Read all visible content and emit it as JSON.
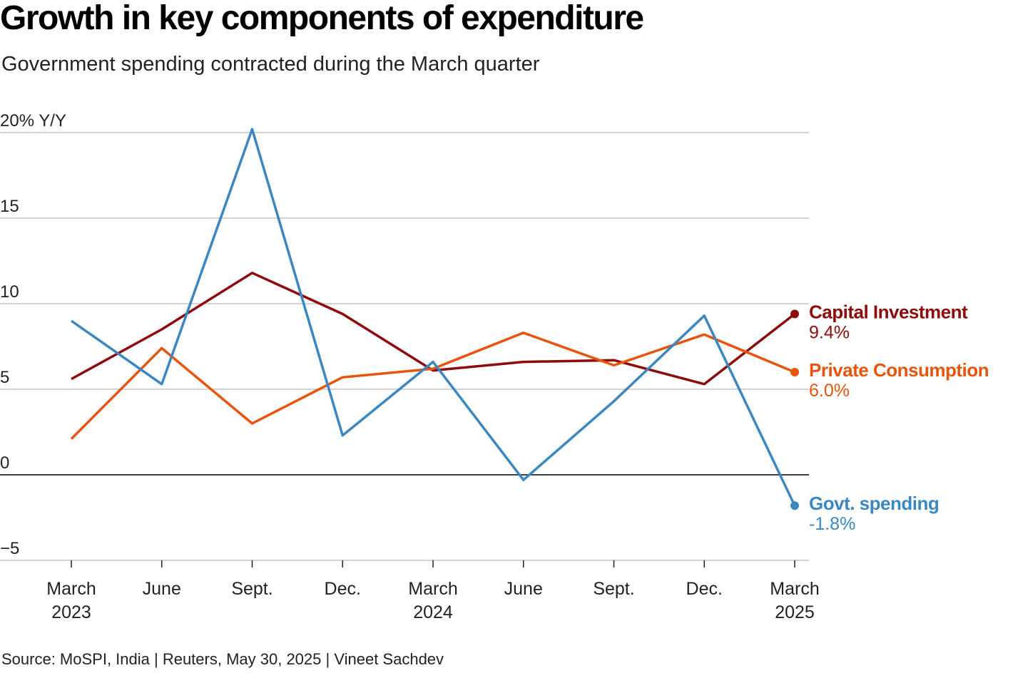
{
  "title": "Growth in key components of expenditure",
  "subtitle": "Government spending contracted during the March quarter",
  "source": "Source: MoSPI, India | Reuters, May 30, 2025 | Vineet Sachdev",
  "chart_data": {
    "type": "line",
    "title": "Growth in key components of expenditure",
    "ylabel": "% Y/Y",
    "ylim": [
      -5,
      20
    ],
    "yticks": [
      -5,
      0,
      5,
      10,
      15,
      20
    ],
    "ytick_labels": [
      "−5",
      "0",
      "5",
      "10",
      "15",
      "20% Y/Y"
    ],
    "grid": true,
    "categories": [
      [
        "March",
        "2023"
      ],
      [
        "June",
        ""
      ],
      [
        "Sept.",
        ""
      ],
      [
        "Dec.",
        ""
      ],
      [
        "March",
        "2024"
      ],
      [
        "June",
        ""
      ],
      [
        "Sept.",
        ""
      ],
      [
        "Dec.",
        ""
      ],
      [
        "March",
        "2025"
      ]
    ],
    "series": [
      {
        "name": "Capital Investment",
        "end_label": "9.4%",
        "color": "#8f0a0a",
        "values": [
          5.6,
          8.5,
          11.8,
          9.4,
          6.1,
          6.6,
          6.7,
          5.3,
          9.4
        ]
      },
      {
        "name": "Private Consumption",
        "end_label": "6.0%",
        "color": "#e6550d",
        "values": [
          2.1,
          7.4,
          3.0,
          5.7,
          6.2,
          8.3,
          6.4,
          8.2,
          6.0
        ]
      },
      {
        "name": "Govt. spending",
        "end_label": "-1.8%",
        "color": "#3a87c2",
        "values": [
          9.0,
          5.3,
          20.2,
          2.3,
          6.6,
          -0.3,
          4.3,
          9.3,
          -1.8
        ]
      }
    ],
    "legend": "end-labels right"
  }
}
